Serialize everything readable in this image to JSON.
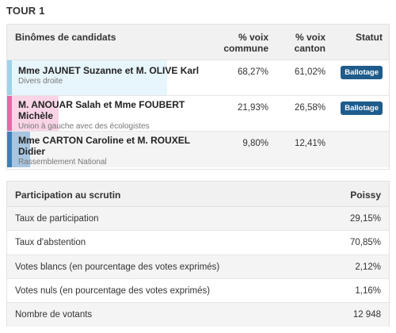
{
  "tour_title": "TOUR 1",
  "results": {
    "headers": {
      "candidates": "Binômes de candidats",
      "pct_commune_line1": "% voix",
      "pct_commune_line2": "commune",
      "pct_canton_line1": "% voix",
      "pct_canton_line2": "canton",
      "status": "Statut"
    },
    "rows": [
      {
        "name": "Mme JAUNET Suzanne et M. OLIVE Karl",
        "party": "Divers droite",
        "pct_commune": "68,27%",
        "pct_canton": "61,02%",
        "status": "Ballotage",
        "color": "#9fd3ea",
        "fill_color": "#dff2fb",
        "fill_fraction": 0.6827
      },
      {
        "name": "M. ANOUAR Salah et Mme FOUBERT Michèle",
        "party": "Union à gauche avec des écologistes",
        "pct_commune": "21,93%",
        "pct_canton": "26,58%",
        "status": "Ballotage",
        "color": "#e26aa8",
        "fill_color": "#f5c6de",
        "fill_fraction": 0.2193
      },
      {
        "name": "Mme CARTON Caroline et M. ROUXEL Didier",
        "party": "Rassemblement National",
        "pct_commune": "9,80%",
        "pct_canton": "12,41%",
        "status": "",
        "color": "#3e7fba",
        "fill_color": "#8fb6d9",
        "fill_fraction": 0.098
      }
    ]
  },
  "participation": {
    "header_label": "Participation au scrutin",
    "header_city": "Poissy",
    "rows": [
      {
        "label": "Taux de participation",
        "value": "29,15%"
      },
      {
        "label": "Taux d'abstention",
        "value": "70,85%"
      },
      {
        "label": "Votes blancs (en pourcentage des votes exprimés)",
        "value": "2,12%"
      },
      {
        "label": "Votes nuls (en pourcentage des votes exprimés)",
        "value": "1,16%"
      },
      {
        "label": "Nombre de votants",
        "value": "12 948"
      }
    ]
  }
}
